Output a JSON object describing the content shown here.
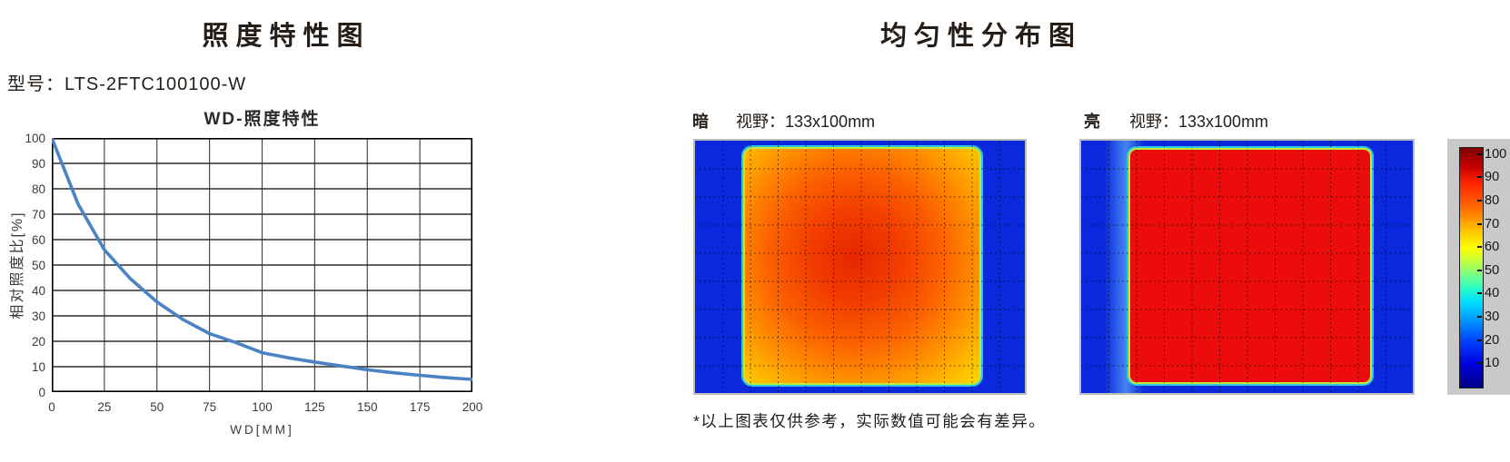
{
  "left_panel": {
    "title": "照度特性图",
    "model_label": "型号：LTS-2FTC100100-W"
  },
  "right_panel": {
    "title": "均匀性分布图",
    "heatmaps": [
      {
        "label": "暗",
        "fov_label": "视野：133x100mm"
      },
      {
        "label": "亮",
        "fov_label": "视野：133x100mm"
      }
    ],
    "footnote": "*以上图表仅供参考，实际数值可能会有差异。"
  },
  "chart_data": [
    {
      "type": "line",
      "title": "WD-照度特性",
      "xlabel": "WD[MM]",
      "ylabel": "相对照度比[%]",
      "xlim": [
        0,
        200
      ],
      "ylim": [
        0,
        100
      ],
      "x_ticks": [
        0,
        25,
        50,
        75,
        100,
        125,
        150,
        175,
        200
      ],
      "y_ticks": [
        0,
        10,
        20,
        30,
        40,
        50,
        60,
        70,
        80,
        90,
        100
      ],
      "grid": "on",
      "series": [
        {
          "name": "相对照度比",
          "color": "#4a82c4",
          "x": [
            0,
            12.5,
            25,
            37.5,
            50,
            62.5,
            75,
            87.5,
            100,
            112.5,
            125,
            137.5,
            150,
            162.5,
            175,
            187.5,
            200
          ],
          "y": [
            100,
            74,
            56,
            44.5,
            35.5,
            28.5,
            23,
            19.5,
            15.5,
            13.5,
            11.8,
            10.3,
            8.8,
            7.6,
            6.6,
            5.7,
            5
          ]
        }
      ]
    },
    {
      "type": "heatmap",
      "name": "dark-field-uniformity",
      "title": "暗 视野：133x100mm",
      "value_range": [
        0,
        100
      ],
      "colormap": "jet",
      "summary": "lit rounded-rectangle field on blue (~0) background; field edges ~60-70, center ~85-90"
    },
    {
      "type": "heatmap",
      "name": "bright-field-uniformity",
      "title": "亮 视野：133x100mm",
      "value_range": [
        0,
        100
      ],
      "colormap": "jet",
      "summary": "lit rounded-rectangle field on blue (~0) background; uniform ~90 over whole field"
    },
    {
      "type": "colorbar",
      "labels": [
        100,
        90,
        80,
        70,
        60,
        50,
        40,
        30,
        20,
        10
      ]
    }
  ]
}
